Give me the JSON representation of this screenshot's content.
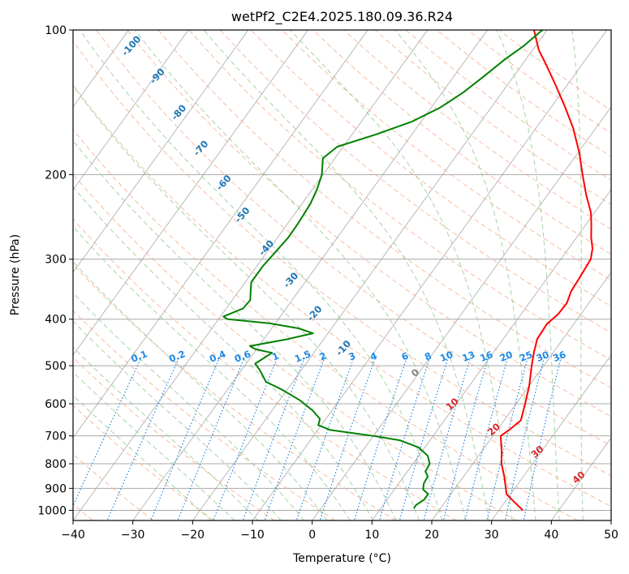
{
  "chart_data": {
    "type": "skew-t log-p",
    "title": "wetPf2_C2E4.2025.180.09.36.R24",
    "xlabel": "Temperature (°C)",
    "ylabel": "Pressure (hPa)",
    "xlim": [
      -40,
      50
    ],
    "ylim_hpa": [
      1050,
      100
    ],
    "x_ticks": [
      -40,
      -30,
      -20,
      -10,
      0,
      10,
      20,
      30,
      40,
      50
    ],
    "x_tick_labels": [
      "−40",
      "−30",
      "−20",
      "−10",
      "0",
      "10",
      "20",
      "30",
      "40",
      "50"
    ],
    "y_ticks": [
      100,
      200,
      300,
      400,
      500,
      600,
      700,
      800,
      900,
      1000
    ],
    "y_tick_labels": [
      "100",
      "200",
      "300",
      "400",
      "500",
      "600",
      "700",
      "800",
      "900",
      "1000"
    ],
    "grid": true,
    "colors": {
      "temperature": "#ff0000",
      "dewpoint": "#008000",
      "dry_adiabat": "#f4a582",
      "moist_adiabat": "#8fc98f",
      "mixing_ratio": "#1e88e5",
      "isotherm": "#8c8c8c",
      "dry_adiabat_label": "#1f77b4",
      "moist_adiabat_label": "#d62728"
    },
    "series": [
      {
        "key": "temperature",
        "points": [
          {
            "p": 1000,
            "t": 34.0
          },
          {
            "p": 960,
            "t": 31.5
          },
          {
            "p": 925,
            "t": 29.3
          },
          {
            "p": 900,
            "t": 28.5
          },
          {
            "p": 850,
            "t": 26.8
          },
          {
            "p": 800,
            "t": 24.8
          },
          {
            "p": 750,
            "t": 23.2
          },
          {
            "p": 700,
            "t": 21.3
          },
          {
            "p": 680,
            "t": 22.0
          },
          {
            "p": 650,
            "t": 22.8
          },
          {
            "p": 600,
            "t": 21.5
          },
          {
            "p": 550,
            "t": 20.0
          },
          {
            "p": 500,
            "t": 18.0
          },
          {
            "p": 470,
            "t": 16.8
          },
          {
            "p": 440,
            "t": 15.7
          },
          {
            "p": 410,
            "t": 15.5
          },
          {
            "p": 390,
            "t": 16.2
          },
          {
            "p": 370,
            "t": 16.3
          },
          {
            "p": 350,
            "t": 15.6
          },
          {
            "p": 330,
            "t": 15.4
          },
          {
            "p": 300,
            "t": 15.0
          },
          {
            "p": 285,
            "t": 14.0
          },
          {
            "p": 270,
            "t": 12.4
          },
          {
            "p": 255,
            "t": 11.0
          },
          {
            "p": 240,
            "t": 9.4
          },
          {
            "p": 220,
            "t": 6.4
          },
          {
            "p": 200,
            "t": 3.4
          },
          {
            "p": 180,
            "t": 0.2
          },
          {
            "p": 160,
            "t": -3.8
          },
          {
            "p": 145,
            "t": -7.6
          },
          {
            "p": 130,
            "t": -12.0
          },
          {
            "p": 118,
            "t": -16.0
          },
          {
            "p": 110,
            "t": -19.0
          },
          {
            "p": 100,
            "t": -22.2
          }
        ]
      },
      {
        "key": "dewpoint",
        "points": [
          {
            "p": 990,
            "t": 15.5
          },
          {
            "p": 975,
            "t": 15.5
          },
          {
            "p": 950,
            "t": 16.2
          },
          {
            "p": 925,
            "t": 16.2
          },
          {
            "p": 905,
            "t": 14.8
          },
          {
            "p": 880,
            "t": 14.2
          },
          {
            "p": 850,
            "t": 14.0
          },
          {
            "p": 830,
            "t": 13.0
          },
          {
            "p": 800,
            "t": 12.8
          },
          {
            "p": 770,
            "t": 11.5
          },
          {
            "p": 740,
            "t": 9.0
          },
          {
            "p": 715,
            "t": 5.0
          },
          {
            "p": 700,
            "t": 0.0
          },
          {
            "p": 690,
            "t": -4.0
          },
          {
            "p": 680,
            "t": -8.0
          },
          {
            "p": 665,
            "t": -10.5
          },
          {
            "p": 645,
            "t": -11.0
          },
          {
            "p": 620,
            "t": -13.2
          },
          {
            "p": 590,
            "t": -16.6
          },
          {
            "p": 560,
            "t": -21.0
          },
          {
            "p": 540,
            "t": -24.5
          },
          {
            "p": 510,
            "t": -27.0
          },
          {
            "p": 495,
            "t": -28.5
          },
          {
            "p": 480,
            "t": -27.6
          },
          {
            "p": 470,
            "t": -27.0
          },
          {
            "p": 462,
            "t": -30.2
          },
          {
            "p": 455,
            "t": -31.5
          },
          {
            "p": 440,
            "t": -26.0
          },
          {
            "p": 428,
            "t": -22.5
          },
          {
            "p": 418,
            "t": -25.5
          },
          {
            "p": 408,
            "t": -31.0
          },
          {
            "p": 400,
            "t": -38.5
          },
          {
            "p": 395,
            "t": -39.5
          },
          {
            "p": 380,
            "t": -37.2
          },
          {
            "p": 365,
            "t": -37.0
          },
          {
            "p": 350,
            "t": -38.0
          },
          {
            "p": 335,
            "t": -39.0
          },
          {
            "p": 310,
            "t": -39.0
          },
          {
            "p": 290,
            "t": -38.6
          },
          {
            "p": 270,
            "t": -38.2
          },
          {
            "p": 250,
            "t": -38.3
          },
          {
            "p": 230,
            "t": -38.6
          },
          {
            "p": 215,
            "t": -39.2
          },
          {
            "p": 200,
            "t": -40.2
          },
          {
            "p": 185,
            "t": -42.0
          },
          {
            "p": 175,
            "t": -41.0
          },
          {
            "p": 165,
            "t": -36.0
          },
          {
            "p": 155,
            "t": -31.5
          },
          {
            "p": 145,
            "t": -28.5
          },
          {
            "p": 135,
            "t": -26.5
          },
          {
            "p": 125,
            "t": -25.0
          },
          {
            "p": 115,
            "t": -23.5
          },
          {
            "p": 108,
            "t": -22.0
          },
          {
            "p": 100,
            "t": -20.8
          }
        ]
      }
    ],
    "dry_adiabat_labels": [
      {
        "text": "-100",
        "t": -87,
        "p": 109
      },
      {
        "text": "-90",
        "t": -79,
        "p": 126
      },
      {
        "text": "-80",
        "t": -71,
        "p": 150
      },
      {
        "text": "-70",
        "t": -63,
        "p": 178
      },
      {
        "text": "-60",
        "t": -55,
        "p": 210
      },
      {
        "text": "-50",
        "t": -48,
        "p": 245
      },
      {
        "text": "-40",
        "t": -40,
        "p": 287
      },
      {
        "text": "-30",
        "t": -32,
        "p": 335
      },
      {
        "text": "-20",
        "t": -24,
        "p": 393
      },
      {
        "text": "-10",
        "t": -15,
        "p": 464
      }
    ],
    "mixing_ratio_labels": [
      "0.1",
      "0.2",
      "0.4",
      "0.6",
      "1",
      "1.5",
      "2",
      "3",
      "4",
      "6",
      "8",
      "10",
      "13",
      "16",
      "20",
      "25",
      "30",
      "36"
    ],
    "mixing_ratio_values": [
      0.1,
      0.2,
      0.4,
      0.6,
      1,
      1.5,
      2,
      3,
      4,
      6,
      8,
      10,
      13,
      16,
      20,
      25,
      30,
      36
    ],
    "moist_adiabat_labels": [
      {
        "text": "0",
        "t": 0,
        "p": 523
      },
      {
        "text": "10",
        "t": 10,
        "p": 608
      },
      {
        "text": "20",
        "t": 20,
        "p": 686
      },
      {
        "text": "30",
        "t": 30,
        "p": 764
      },
      {
        "text": "40",
        "t": 40,
        "p": 864
      }
    ]
  }
}
